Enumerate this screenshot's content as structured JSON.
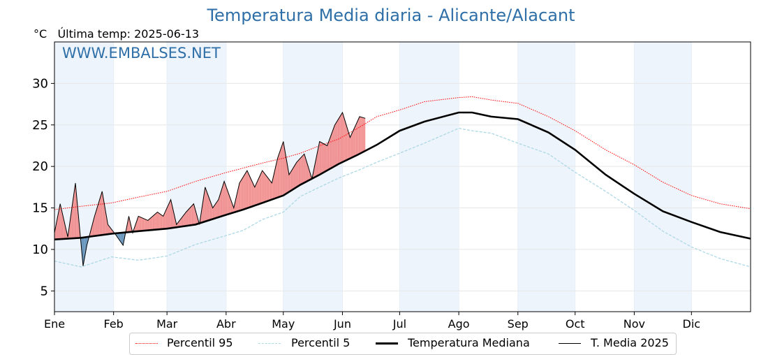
{
  "title": "Temperatura Media diaria - Alicante/Alacant",
  "subtitle": {
    "unit": "°C",
    "last_temp_label": "Última temp: 2025-06-13"
  },
  "watermark": "WWW.EMBALSES.NET",
  "colors": {
    "title": "#2f6fa8",
    "p95": "#ff0000",
    "p5": "#add8e6",
    "median": "#000000",
    "media2025": "#000000",
    "above_fill": "#f08080",
    "below_fill": "#4f84b0",
    "month_band": "#eef4fb"
  },
  "legend": {
    "p95": "Percentil 95",
    "p5": "Percentil 5",
    "median": "Temperatura Mediana",
    "media2025": "T. Media 2025"
  },
  "chart_data": {
    "type": "line",
    "title": "Temperatura Media diaria - Alicante/Alacant",
    "ylabel": "°C",
    "xlabel": "",
    "ylim": [
      2.5,
      35
    ],
    "yticks": [
      5,
      10,
      15,
      20,
      25,
      30
    ],
    "xlim": [
      1,
      366
    ],
    "month_ticks": [
      {
        "label": "Ene",
        "day": 1
      },
      {
        "label": "Feb",
        "day": 32
      },
      {
        "label": "Mar",
        "day": 60
      },
      {
        "label": "Abr",
        "day": 91
      },
      {
        "label": "May",
        "day": 121
      },
      {
        "label": "Jun",
        "day": 152
      },
      {
        "label": "Jul",
        "day": 182
      },
      {
        "label": "Ago",
        "day": 213
      },
      {
        "label": "Sep",
        "day": 244
      },
      {
        "label": "Oct",
        "day": 274
      },
      {
        "label": "Nov",
        "day": 305
      },
      {
        "label": "Dic",
        "day": 335
      }
    ],
    "grid": true,
    "legend_position": "bottom-center",
    "series": [
      {
        "name": "Percentil 95",
        "style": "dotted",
        "x": [
          1,
          15,
          31,
          45,
          60,
          75,
          90,
          100,
          110,
          121,
          130,
          140,
          150,
          160,
          170,
          182,
          195,
          213,
          220,
          230,
          244,
          260,
          274,
          290,
          305,
          320,
          335,
          350,
          366
        ],
        "values": [
          14.8,
          15.2,
          15.6,
          16.3,
          17.0,
          18.2,
          19.2,
          19.8,
          20.4,
          21.0,
          21.6,
          22.5,
          23.3,
          24.6,
          26.0,
          26.8,
          27.8,
          28.3,
          28.4,
          28.0,
          27.6,
          26.0,
          24.3,
          22.0,
          20.2,
          18.1,
          16.5,
          15.5,
          14.9
        ]
      },
      {
        "name": "Percentil 5",
        "style": "dashed",
        "x": [
          1,
          15,
          31,
          45,
          60,
          75,
          90,
          100,
          110,
          121,
          130,
          140,
          150,
          160,
          170,
          182,
          195,
          213,
          220,
          230,
          244,
          260,
          274,
          290,
          305,
          320,
          335,
          350,
          366
        ],
        "values": [
          8.6,
          7.9,
          9.1,
          8.7,
          9.2,
          10.6,
          11.6,
          12.3,
          13.6,
          14.5,
          16.4,
          17.5,
          18.6,
          19.5,
          20.5,
          21.6,
          22.8,
          24.6,
          24.3,
          24.0,
          22.8,
          21.5,
          19.3,
          17.0,
          14.7,
          12.2,
          10.3,
          8.9,
          7.9
        ]
      },
      {
        "name": "Temperatura Mediana",
        "style": "thick",
        "x": [
          1,
          15,
          31,
          45,
          60,
          75,
          90,
          100,
          110,
          121,
          130,
          140,
          150,
          160,
          170,
          182,
          195,
          213,
          220,
          230,
          244,
          260,
          274,
          290,
          305,
          320,
          335,
          350,
          366
        ],
        "values": [
          11.2,
          11.4,
          11.9,
          12.2,
          12.5,
          13.0,
          14.1,
          14.8,
          15.6,
          16.5,
          17.8,
          19.0,
          20.3,
          21.4,
          22.6,
          24.3,
          25.4,
          26.5,
          26.5,
          26.0,
          25.7,
          24.1,
          22.0,
          19.0,
          16.7,
          14.6,
          13.3,
          12.1,
          11.3
        ]
      },
      {
        "name": "T. Media 2025",
        "style": "thin",
        "x": [
          1,
          4,
          8,
          12,
          16,
          18,
          22,
          26,
          29,
          33,
          37,
          40,
          42,
          45,
          50,
          55,
          58,
          62,
          65,
          70,
          74,
          77,
          80,
          84,
          87,
          90,
          95,
          98,
          102,
          106,
          110,
          115,
          118,
          121,
          124,
          128,
          132,
          136,
          140,
          144,
          148,
          152,
          156,
          159,
          161,
          164
        ],
        "values": [
          12.0,
          15.5,
          11.5,
          18.0,
          8.0,
          10.5,
          14.0,
          17.0,
          13.0,
          11.8,
          10.5,
          14.0,
          12.0,
          14.0,
          13.5,
          14.5,
          14.0,
          16.0,
          13.0,
          14.5,
          15.5,
          13.0,
          17.5,
          15.0,
          16.0,
          18.2,
          15.0,
          18.0,
          19.5,
          17.5,
          19.5,
          18.0,
          21.0,
          23.0,
          19.0,
          20.5,
          21.5,
          18.5,
          23.0,
          22.5,
          25.0,
          26.5,
          23.5,
          25.0,
          26.0,
          25.8
        ]
      }
    ]
  }
}
